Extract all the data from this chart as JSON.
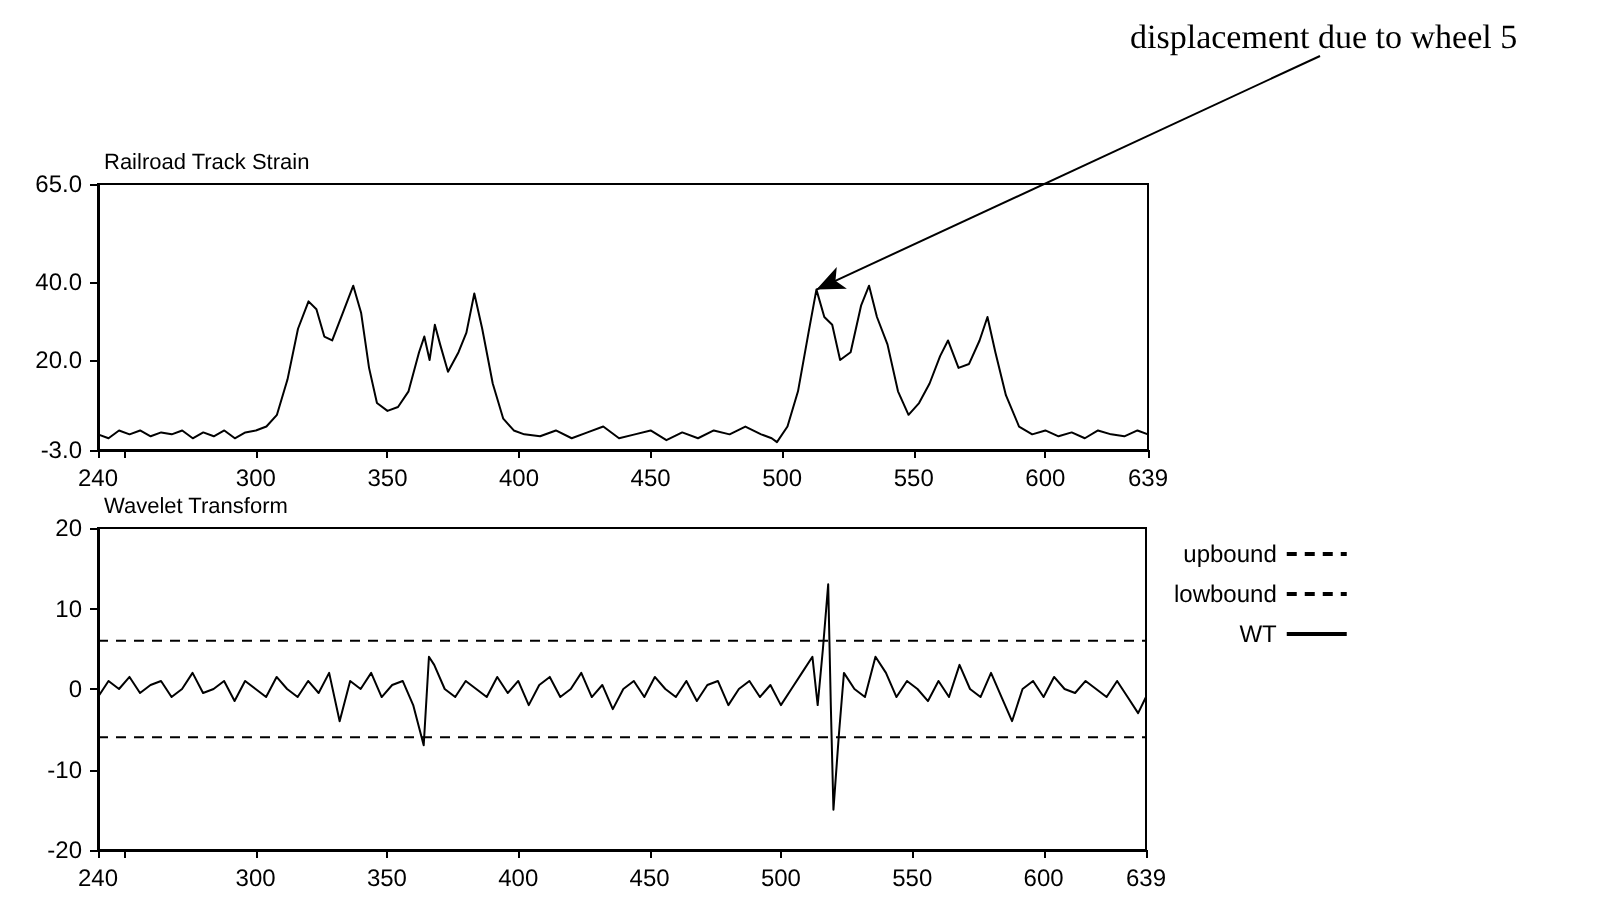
{
  "chart_data": [
    {
      "type": "line",
      "title": "Railroad Track Strain",
      "xlim": [
        240,
        639
      ],
      "ylim": [
        -3,
        65
      ],
      "xticks": [
        240,
        {
          "value": 250,
          "label": null
        },
        300,
        350,
        400,
        450,
        500,
        550,
        600,
        639
      ],
      "yticks": [
        {
          "value": -3,
          "label": "-3.0"
        },
        {
          "value": 20,
          "label": "20.0"
        },
        {
          "value": 40,
          "label": "40.0"
        },
        {
          "value": 65,
          "label": "65.0"
        }
      ],
      "grid": false,
      "legend": false,
      "marker": "none",
      "annotations": [
        {
          "text": "displacement due to wheel 5",
          "x": 513,
          "y": 38
        }
      ],
      "series": [
        {
          "color": "#000000",
          "x": [
            240,
            244,
            248,
            252,
            256,
            260,
            264,
            268,
            272,
            276,
            280,
            284,
            288,
            292,
            296,
            300,
            304,
            308,
            312,
            316,
            320,
            323,
            326,
            329,
            333,
            337,
            340,
            343,
            346,
            350,
            354,
            358,
            362,
            364,
            366,
            368,
            370,
            373,
            377,
            380,
            383,
            386,
            390,
            394,
            398,
            402,
            408,
            414,
            420,
            426,
            432,
            438,
            444,
            450,
            456,
            462,
            468,
            474,
            480,
            486,
            492,
            496,
            498,
            502,
            506,
            510,
            513,
            516,
            519,
            522,
            526,
            530,
            533,
            536,
            540,
            544,
            548,
            552,
            556,
            560,
            563,
            567,
            571,
            575,
            578,
            581,
            585,
            590,
            595,
            600,
            605,
            610,
            615,
            620,
            625,
            630,
            635,
            639
          ],
          "values": [
            1,
            0,
            2,
            1,
            2,
            0.5,
            1.5,
            1,
            2,
            0,
            1.5,
            0.5,
            2,
            0,
            1.5,
            2,
            3,
            6,
            15,
            28,
            35,
            33,
            26,
            25,
            32,
            39,
            32,
            18,
            9,
            7,
            8,
            12,
            22,
            26,
            20,
            29,
            24,
            17,
            22,
            27,
            37,
            28,
            14,
            5,
            2,
            1,
            0.5,
            2,
            0,
            1.5,
            3,
            0,
            1,
            2,
            -0.5,
            1.5,
            0,
            2,
            1,
            3,
            1,
            0,
            -1,
            3,
            12,
            27,
            38,
            31,
            29,
            20,
            22,
            34,
            39,
            31,
            24,
            12,
            6,
            9,
            14,
            21,
            25,
            18,
            19,
            25,
            31,
            22,
            11,
            3,
            1,
            2,
            0.5,
            1.5,
            0,
            2,
            1,
            0.5,
            2,
            1
          ]
        }
      ]
    },
    {
      "type": "line",
      "title": "Wavelet Transform",
      "xlim": [
        240,
        639
      ],
      "ylim": [
        -20,
        20
      ],
      "xticks": [
        240,
        {
          "value": 250,
          "label": null
        },
        300,
        350,
        400,
        450,
        500,
        550,
        600,
        639
      ],
      "yticks": [
        -20,
        -10,
        0,
        10,
        20
      ],
      "grid": false,
      "legend": "right",
      "marker": "none",
      "series": [
        {
          "name": "upbound",
          "color": "#000000",
          "line_style": "dashed",
          "x": [
            240,
            639
          ],
          "values": [
            6,
            6
          ]
        },
        {
          "name": "lowbound",
          "color": "#000000",
          "line_style": "dashed",
          "x": [
            240,
            639
          ],
          "values": [
            -6,
            -6
          ]
        },
        {
          "name": "WT",
          "color": "#000000",
          "line_style": "solid",
          "x": [
            240,
            244,
            248,
            252,
            256,
            260,
            264,
            268,
            272,
            276,
            280,
            284,
            288,
            292,
            296,
            300,
            304,
            308,
            312,
            316,
            320,
            324,
            328,
            332,
            336,
            340,
            344,
            348,
            352,
            356,
            360,
            364,
            366,
            368,
            372,
            376,
            380,
            384,
            388,
            392,
            396,
            400,
            404,
            408,
            412,
            416,
            420,
            424,
            428,
            432,
            436,
            440,
            444,
            448,
            452,
            456,
            460,
            464,
            468,
            472,
            476,
            480,
            484,
            488,
            492,
            496,
            500,
            504,
            508,
            512,
            514,
            516,
            518,
            519,
            520,
            522,
            524,
            528,
            532,
            536,
            540,
            544,
            548,
            552,
            556,
            560,
            564,
            568,
            572,
            576,
            580,
            584,
            588,
            592,
            596,
            600,
            604,
            608,
            612,
            616,
            620,
            624,
            628,
            632,
            636,
            639
          ],
          "values": [
            -1,
            1,
            0,
            1.5,
            -0.5,
            0.5,
            1,
            -1,
            0,
            2,
            -0.5,
            0,
            1,
            -1.5,
            1,
            0,
            -1,
            1.5,
            0,
            -1,
            1,
            -0.5,
            2,
            -4,
            1,
            0,
            2,
            -1,
            0.5,
            1,
            -2,
            -7,
            4,
            3,
            0,
            -1,
            1,
            0,
            -1,
            1.5,
            -0.5,
            1,
            -2,
            0.5,
            1.5,
            -1,
            0,
            2,
            -1,
            0.5,
            -2.5,
            0,
            1,
            -1,
            1.5,
            0,
            -1,
            1,
            -1.5,
            0.5,
            1,
            -2,
            0,
            1,
            -1,
            0.5,
            -2,
            0,
            2,
            4,
            -2,
            5,
            13,
            -2,
            -15,
            -6,
            2,
            0,
            -1,
            4,
            2,
            -1,
            1,
            0,
            -1.5,
            1,
            -1,
            3,
            0,
            -1,
            2,
            -1,
            -4,
            0,
            1,
            -1,
            1.5,
            0,
            -0.5,
            1,
            0,
            -1,
            1,
            -1,
            -3,
            -1
          ]
        }
      ]
    }
  ]
}
